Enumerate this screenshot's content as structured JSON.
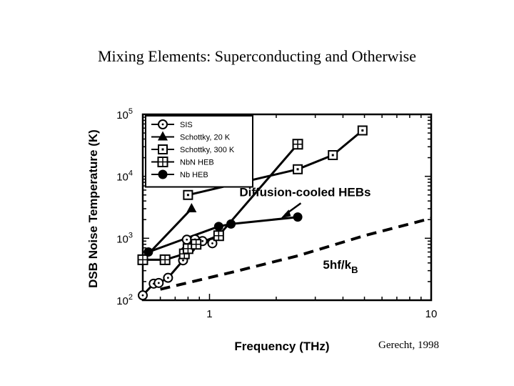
{
  "slide": {
    "title": "Mixing Elements: Superconducting and Otherwise",
    "credit": "Gerecht, 1998"
  },
  "chart_data": {
    "type": "line",
    "xlabel": "Frequency (THz)",
    "ylabel": "DSB Noise Temperature (K)",
    "xscale": "log",
    "yscale": "log",
    "xlim": [
      0.5,
      10
    ],
    "ylim": [
      100,
      100000
    ],
    "x_tick_labels": [
      {
        "value": 1,
        "label": "1"
      },
      {
        "value": 10,
        "label": "10"
      }
    ],
    "y_tick_labels": [
      {
        "value": 100,
        "label": "10",
        "exp": "2"
      },
      {
        "value": 1000,
        "label": "10",
        "exp": "3"
      },
      {
        "value": 10000,
        "label": "10",
        "exp": "4"
      },
      {
        "value": 100000,
        "label": "10",
        "exp": "5"
      }
    ],
    "legend_position": "top-left",
    "series": [
      {
        "name": "SIS",
        "marker": "circle-dot",
        "line": "solid",
        "points": [
          [
            0.5,
            120
          ],
          [
            0.56,
            185
          ],
          [
            0.59,
            190
          ],
          [
            0.65,
            230
          ],
          [
            0.76,
            440
          ],
          [
            0.78,
            620
          ],
          [
            0.79,
            950
          ],
          [
            0.82,
            700
          ],
          [
            0.86,
            960
          ],
          [
            0.93,
            900
          ],
          [
            1.03,
            830
          ]
        ]
      },
      {
        "name": "Schottky, 20 K",
        "marker": "triangle",
        "line": "solid",
        "points": [
          [
            0.5,
            450
          ],
          [
            0.83,
            3000
          ]
        ]
      },
      {
        "name": "Schottky, 300 K",
        "marker": "square-dot",
        "line": "solid",
        "points": [
          [
            0.8,
            5000
          ],
          [
            2.5,
            13000
          ],
          [
            3.6,
            22000
          ],
          [
            4.9,
            55000
          ]
        ]
      },
      {
        "name": "NbN HEB",
        "marker": "square-cross",
        "line": "solid",
        "points": [
          [
            0.5,
            450
          ],
          [
            0.63,
            450
          ],
          [
            0.77,
            560
          ],
          [
            0.8,
            680
          ],
          [
            0.87,
            800
          ],
          [
            1.1,
            1100
          ],
          [
            2.5,
            33000
          ]
        ]
      },
      {
        "name": "Nb HEB",
        "marker": "filled-circle",
        "line": "solid",
        "points": [
          [
            0.53,
            600
          ],
          [
            1.1,
            1550
          ],
          [
            1.25,
            1700
          ],
          [
            2.5,
            2200
          ]
        ]
      },
      {
        "name": "",
        "marker": "none",
        "line": "dashed",
        "points": [
          [
            0.6,
            150
          ],
          [
            1.3,
            290
          ],
          [
            2.5,
            520
          ],
          [
            5,
            1100
          ],
          [
            10,
            2100
          ]
        ]
      }
    ],
    "annotations": [
      {
        "text": "Diffusion-cooled HEBs",
        "x": 2.7,
        "y": 4800
      },
      {
        "text": "5hf/k",
        "sub": "B",
        "x": 3.25,
        "y": 320
      }
    ]
  }
}
